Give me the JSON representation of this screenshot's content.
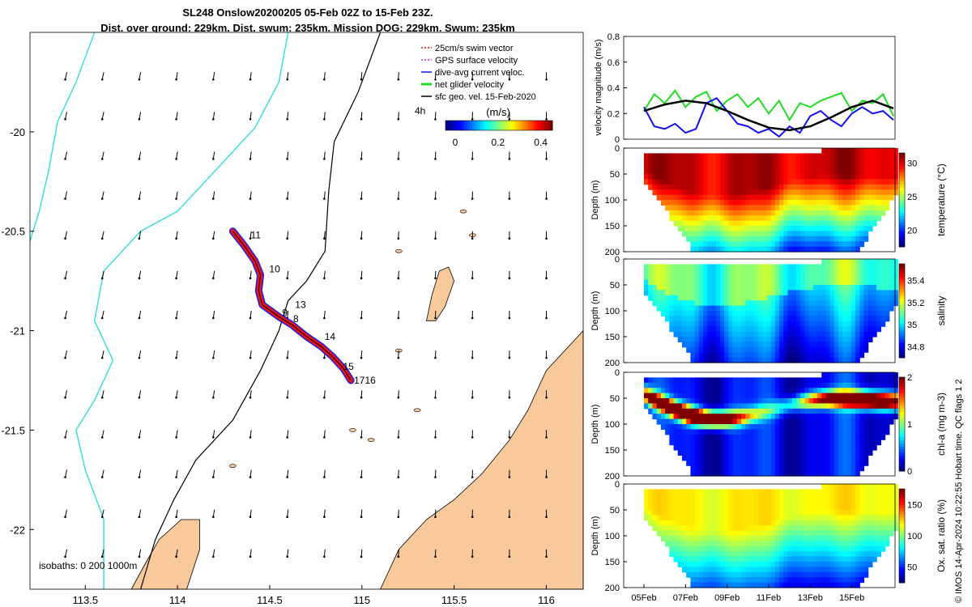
{
  "title_line1": "SL248 Onslow20200205 05-Feb 02Z to 15-Feb 23Z.",
  "title_line2": "Dist. over ground: 229km. Dist. swum: 235km. Mission DOG: 229km. Swum: 235km",
  "credit": "© IMOS 14-Apr-2024 10:22:55 Hobart time. QC flags 1  2",
  "colors": {
    "land": "#f8c99a",
    "shelf": "#33dddd",
    "track_red": "#ee1111",
    "track_blue": "#1111ee",
    "green": "#22dd22",
    "black": "#000000"
  },
  "chart_data": [
    {
      "type": "map",
      "xlim": [
        113.2,
        116.2
      ],
      "ylim": [
        -22.3,
        -19.5
      ],
      "xticks": [
        "113.5",
        "114",
        "114.5",
        "115",
        "115.5",
        "116"
      ],
      "yticks": [
        "-20",
        "-20.5",
        "-21",
        "-21.5",
        "-22"
      ],
      "legend": [
        "25cm/s swim vector",
        "GPS surface velocity",
        "dive-avg current veloc.",
        "net glider velocity",
        "sfc geo. vel. 15-Feb-2020"
      ],
      "legend_extra": "4h",
      "colorbar_label": "(m/s)",
      "colorbar_ticks": [
        "0",
        "0.2",
        "0.4"
      ],
      "colorbar_range": [
        0,
        0.5
      ],
      "isobath_label": "isobaths: 0   200  1000m",
      "day_labels": [
        {
          "text": "11",
          "lon": 114.38,
          "lat": -20.52
        },
        {
          "text": "10",
          "lon": 114.48,
          "lat": -20.69
        },
        {
          "text": "13",
          "lon": 114.62,
          "lat": -20.87
        },
        {
          "text": "9",
          "lon": 114.55,
          "lat": -20.91
        },
        {
          "text": "8",
          "lon": 114.61,
          "lat": -20.94
        },
        {
          "text": "14",
          "lon": 114.78,
          "lat": -21.03
        },
        {
          "text": "15",
          "lon": 114.88,
          "lat": -21.18
        },
        {
          "text": "1716",
          "lon": 114.94,
          "lat": -21.25
        }
      ],
      "track": [
        [
          114.3,
          -20.5
        ],
        [
          114.36,
          -20.57
        ],
        [
          114.42,
          -20.65
        ],
        [
          114.45,
          -20.72
        ],
        [
          114.44,
          -20.8
        ],
        [
          114.46,
          -20.87
        ],
        [
          114.55,
          -20.93
        ],
        [
          114.62,
          -20.97
        ],
        [
          114.7,
          -21.03
        ],
        [
          114.78,
          -21.08
        ],
        [
          114.84,
          -21.13
        ],
        [
          114.9,
          -21.19
        ],
        [
          114.94,
          -21.25
        ]
      ]
    },
    {
      "type": "line",
      "ylabel": "velocity magnitude (m/s)",
      "ylim": [
        0,
        0.8
      ],
      "yticks": [
        "0",
        "0.2",
        "0.4",
        "0.6",
        "0.8"
      ],
      "xlim": [
        0,
        12
      ],
      "series": [
        {
          "color": "#22dd22",
          "x": [
            0,
            0.5,
            1,
            1.5,
            2,
            2.5,
            3,
            3.5,
            4,
            4.5,
            5,
            5.5,
            6,
            6.5,
            7,
            7.5,
            8,
            8.5,
            9,
            9.5,
            10,
            10.5,
            11,
            11.5,
            12
          ],
          "values": [
            0.22,
            0.35,
            0.28,
            0.38,
            0.25,
            0.33,
            0.37,
            0.22,
            0.3,
            0.35,
            0.25,
            0.32,
            0.2,
            0.3,
            0.15,
            0.28,
            0.25,
            0.3,
            0.33,
            0.36,
            0.22,
            0.3,
            0.28,
            0.35,
            0.18
          ]
        },
        {
          "color": "#1111ee",
          "x": [
            0,
            0.5,
            1,
            1.5,
            2,
            2.5,
            3,
            3.5,
            4,
            4.5,
            5,
            5.5,
            6,
            6.5,
            7,
            7.5,
            8,
            8.5,
            9,
            9.5,
            10,
            10.5,
            11,
            11.5,
            12
          ],
          "values": [
            0.25,
            0.1,
            0.08,
            0.12,
            0.05,
            0.08,
            0.28,
            0.32,
            0.22,
            0.12,
            0.1,
            0.05,
            0.08,
            0.02,
            0.1,
            0.05,
            0.18,
            0.22,
            0.15,
            0.1,
            0.2,
            0.25,
            0.2,
            0.22,
            0.15
          ]
        },
        {
          "color": "#000000",
          "x": [
            0,
            1,
            2,
            3,
            4,
            5,
            6,
            7,
            8,
            9,
            10,
            11,
            12
          ],
          "values": [
            0.22,
            0.27,
            0.3,
            0.28,
            0.22,
            0.15,
            0.09,
            0.07,
            0.1,
            0.17,
            0.25,
            0.3,
            0.24
          ]
        }
      ]
    },
    {
      "type": "heatmap",
      "ylabel": "Depth (m)",
      "yticks": [
        "0",
        "50",
        "100",
        "150",
        "200"
      ],
      "ylim": [
        0,
        200
      ],
      "cbar_label": "temperature (°C)",
      "cbar_ticks": [
        "20",
        "25",
        "30"
      ],
      "crange": [
        17.5,
        31.5
      ]
    },
    {
      "type": "heatmap",
      "ylabel": "Depth (m)",
      "yticks": [
        "0",
        "50",
        "100",
        "150",
        "200"
      ],
      "ylim": [
        0,
        200
      ],
      "cbar_label": "salinity",
      "cbar_ticks": [
        "34.8",
        "35",
        "35.2",
        "35.4"
      ],
      "crange": [
        34.7,
        35.55
      ]
    },
    {
      "type": "heatmap",
      "ylabel": "Depth (m)",
      "yticks": [
        "0",
        "50",
        "100",
        "150",
        "200"
      ],
      "ylim": [
        0,
        200
      ],
      "cbar_label": "chl-a (mg m-3)",
      "cbar_ticks": [
        "0",
        "1",
        "2"
      ],
      "crange": [
        0,
        2
      ]
    },
    {
      "type": "heatmap",
      "ylabel": "Depth (m)",
      "yticks": [
        "0",
        "50",
        "100",
        "150",
        "200"
      ],
      "ylim": [
        0,
        200
      ],
      "cbar_label": "Ox. sat. ratio (%)",
      "cbar_ticks": [
        "50",
        "100",
        "150"
      ],
      "crange": [
        25,
        175
      ],
      "xticks": [
        "05Feb",
        "07Feb",
        "09Feb",
        "11Feb",
        "13Feb",
        "15Feb"
      ]
    }
  ]
}
